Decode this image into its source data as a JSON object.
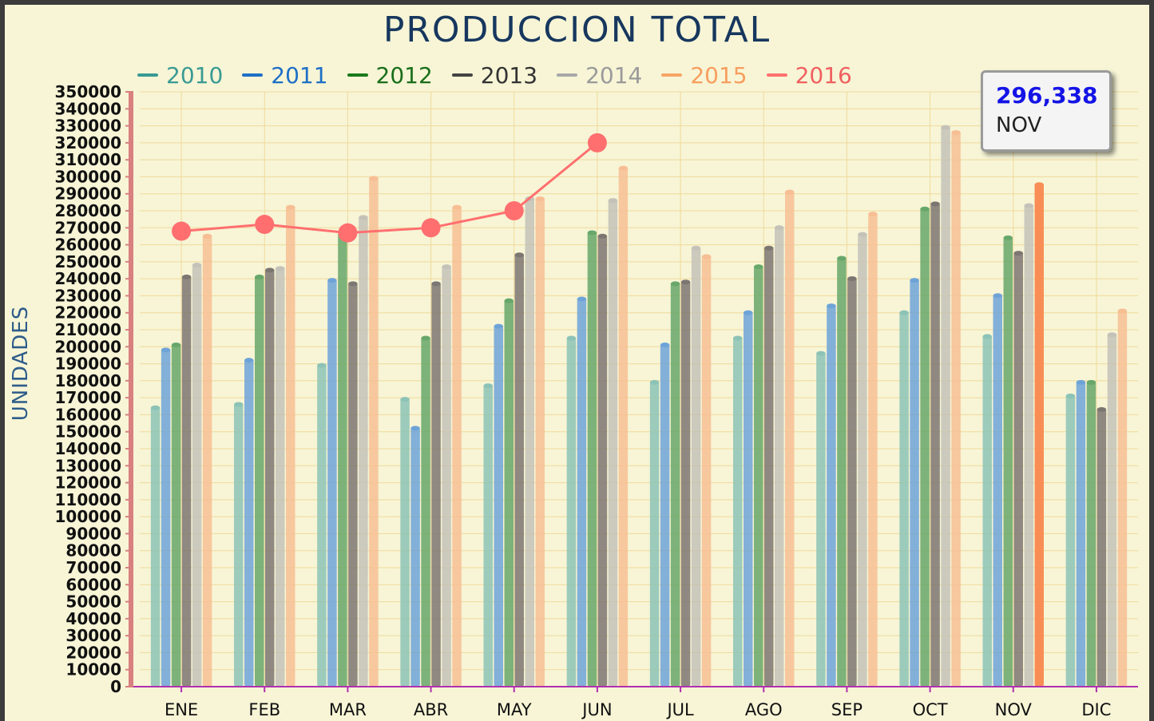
{
  "chart_data": {
    "type": "bar",
    "title": "PRODUCCION TOTAL",
    "ylabel": "UNIDADES",
    "xlabel": "",
    "categories": [
      "ENE",
      "FEB",
      "MAR",
      "ABR",
      "MAY",
      "JUN",
      "JUL",
      "AGO",
      "SEP",
      "OCT",
      "NOV",
      "DIC"
    ],
    "ylim": [
      0,
      350000
    ],
    "ytick_step": 10000,
    "grid": true,
    "legend_position": "top",
    "series": [
      {
        "name": "2010",
        "type": "bar",
        "color": "#8cc3b6",
        "values": [
          165000,
          167000,
          190000,
          170000,
          178000,
          206000,
          180000,
          206000,
          197000,
          221000,
          207000,
          172000
        ]
      },
      {
        "name": "2011",
        "type": "bar",
        "color": "#6ea3d8",
        "values": [
          199000,
          193000,
          240000,
          153000,
          213000,
          229000,
          202000,
          221000,
          225000,
          240000,
          231000,
          180000
        ]
      },
      {
        "name": "2012",
        "type": "bar",
        "color": "#67a76a",
        "values": [
          202000,
          242000,
          267000,
          206000,
          228000,
          268000,
          238000,
          248000,
          253000,
          282000,
          265000,
          180000
        ]
      },
      {
        "name": "2013",
        "type": "bar",
        "color": "#7c7672",
        "values": [
          242000,
          246000,
          238000,
          238000,
          255000,
          266000,
          239000,
          259000,
          241000,
          285000,
          256000,
          164000
        ]
      },
      {
        "name": "2014",
        "type": "bar",
        "color": "#c4c2b8",
        "values": [
          249000,
          247000,
          277000,
          248000,
          288000,
          287000,
          259000,
          271000,
          267000,
          330000,
          284000,
          208000
        ]
      },
      {
        "name": "2015",
        "type": "bar",
        "color": "#f7be94",
        "values": [
          266000,
          283000,
          300000,
          283000,
          288000,
          306000,
          254000,
          292000,
          279000,
          327000,
          296338,
          222000
        ]
      },
      {
        "name": "2016",
        "type": "line",
        "color": "#ff6f6f",
        "values": [
          268000,
          272000,
          267000,
          270000,
          280000,
          320000,
          null,
          null,
          null,
          null,
          null,
          null
        ]
      }
    ],
    "highlight": {
      "series": "2015",
      "category": "NOV",
      "color": "#f88e55"
    }
  },
  "tooltip": {
    "value": "296,338",
    "month": "NOV"
  }
}
